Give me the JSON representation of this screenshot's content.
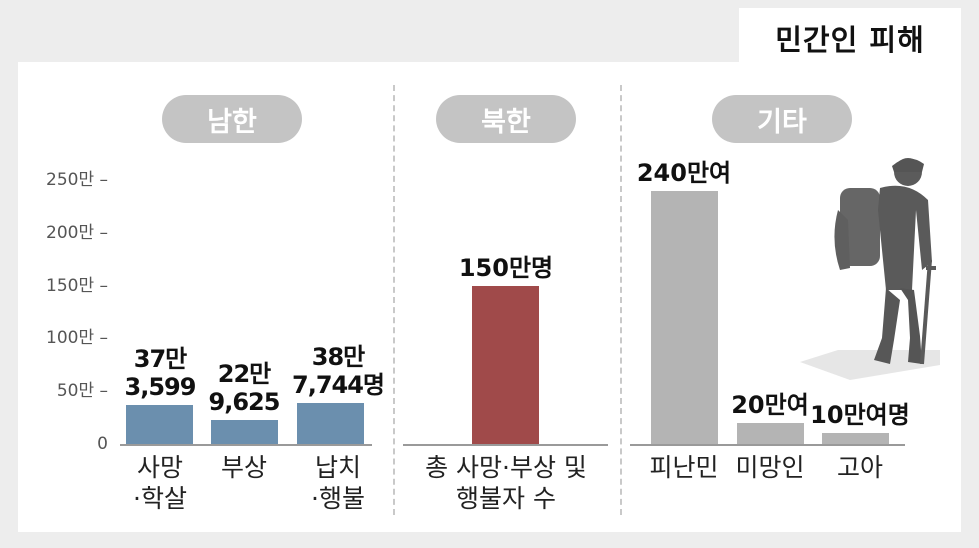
{
  "title": "민간인 피해",
  "chart_data": {
    "type": "bar",
    "y_axis": {
      "ticks": [
        "250만 –",
        "200만 –",
        "150만 –",
        "100만 –",
        "50만 –",
        "0"
      ],
      "ylim": [
        0,
        2500000
      ]
    },
    "groups": [
      {
        "label": "남한",
        "categories": [
          {
            "label": "사망\n·학살",
            "value": 373599,
            "value_label": "37만\n3,599",
            "color": "#6b8fae"
          },
          {
            "label": "부상",
            "value": 229625,
            "value_label": "22만\n9,625",
            "color": "#6b8fae"
          },
          {
            "label": "납치\n·행불",
            "value": 387744,
            "value_label": "38만\n7,744명",
            "color": "#6b8fae"
          }
        ]
      },
      {
        "label": "북한",
        "categories": [
          {
            "label": "총 사망·부상 및\n행불자 수",
            "value": 1500000,
            "value_label": "150만명",
            "color": "#a04a4a"
          }
        ]
      },
      {
        "label": "기타",
        "categories": [
          {
            "label": "피난민",
            "value": 2400000,
            "value_label": "240만여",
            "color": "#b4b4b4"
          },
          {
            "label": "미망인",
            "value": 200000,
            "value_label": "20만여",
            "color": "#b4b4b4"
          },
          {
            "label": "고아",
            "value": 100000,
            "value_label": "10만여명",
            "color": "#b4b4b4"
          }
        ]
      }
    ]
  },
  "icons": [
    "soldier-with-crutch-silhouette"
  ]
}
